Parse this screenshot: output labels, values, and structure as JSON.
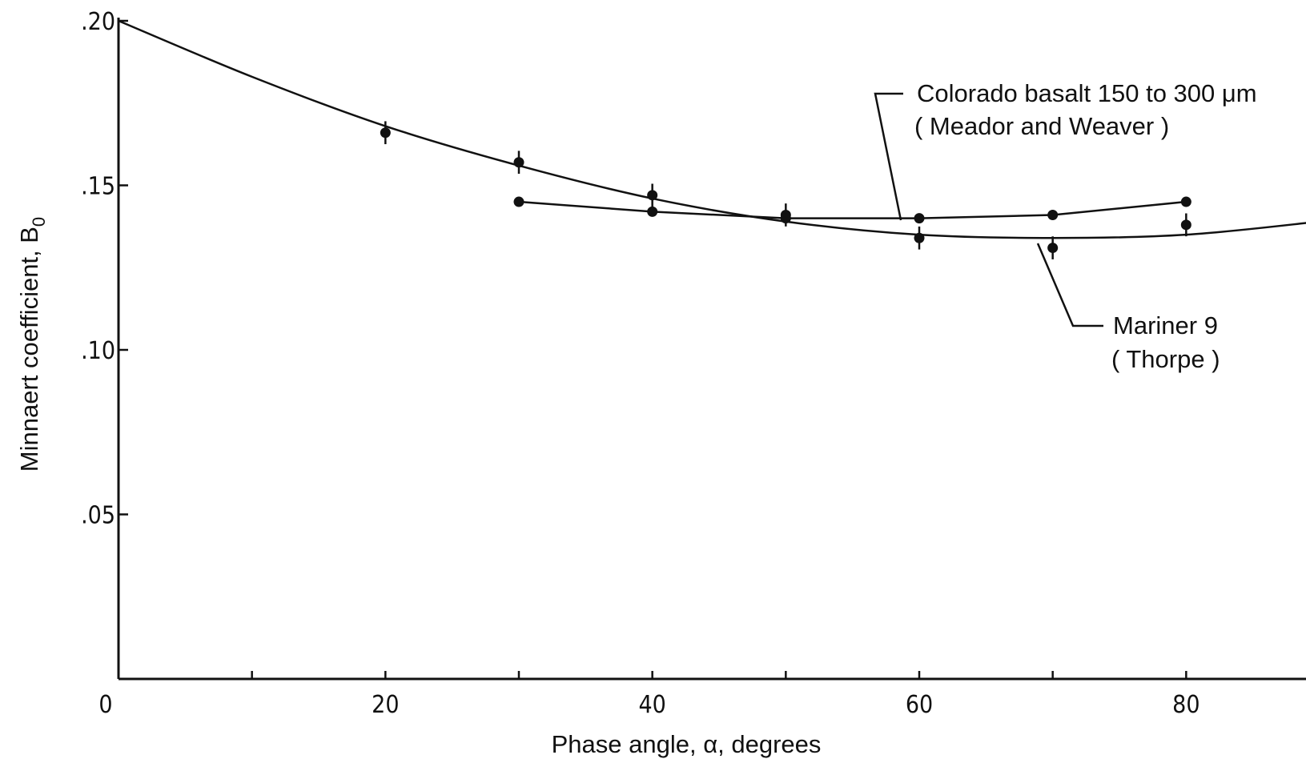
{
  "chart_data": {
    "type": "line",
    "xlabel": "Phase angle, α, degrees",
    "ylabel": "Minnaert coefficient, B",
    "ylabel_subscript": "0",
    "xlim": [
      0,
      90
    ],
    "ylim": [
      0,
      0.2
    ],
    "x_ticks": [
      {
        "value": 0,
        "label": "0"
      },
      {
        "value": 20,
        "label": "20"
      },
      {
        "value": 40,
        "label": "40"
      },
      {
        "value": 60,
        "label": "60"
      },
      {
        "value": 80,
        "label": "80"
      }
    ],
    "x_minor_ticks": [
      10,
      30,
      50,
      70,
      90
    ],
    "y_ticks": [
      {
        "value": 0.05,
        "label": ".05"
      },
      {
        "value": 0.1,
        "label": ".10"
      },
      {
        "value": 0.15,
        "label": ".15"
      },
      {
        "value": 0.2,
        "label": ".20"
      }
    ],
    "grid": false,
    "legend": "none",
    "series": [
      {
        "key": "mariner",
        "label_lines": [
          "Mariner 9",
          "( Thorpe )"
        ],
        "points": [
          {
            "x": 20,
            "y": 0.166,
            "err": 0.003
          },
          {
            "x": 30,
            "y": 0.157,
            "err": 0.003
          },
          {
            "x": 40,
            "y": 0.147,
            "err": 0.003
          },
          {
            "x": 50,
            "y": 0.141,
            "err": 0.003
          },
          {
            "x": 60,
            "y": 0.134,
            "err": 0.003
          },
          {
            "x": 70,
            "y": 0.131,
            "err": 0.003
          },
          {
            "x": 80,
            "y": 0.138,
            "err": 0.003
          }
        ],
        "fit_curve": [
          {
            "x": 0,
            "y": 0.2
          },
          {
            "x": 10,
            "y": 0.183
          },
          {
            "x": 20,
            "y": 0.168
          },
          {
            "x": 30,
            "y": 0.156
          },
          {
            "x": 40,
            "y": 0.146
          },
          {
            "x": 50,
            "y": 0.139
          },
          {
            "x": 60,
            "y": 0.135
          },
          {
            "x": 70,
            "y": 0.134
          },
          {
            "x": 80,
            "y": 0.135
          },
          {
            "x": 90,
            "y": 0.139
          }
        ]
      },
      {
        "key": "basalt",
        "label_lines": [
          "Colorado basalt  150 to 300 μm",
          "( Meador and Weaver )"
        ],
        "points": [
          {
            "x": 30,
            "y": 0.145
          },
          {
            "x": 40,
            "y": 0.142
          },
          {
            "x": 50,
            "y": 0.14
          },
          {
            "x": 60,
            "y": 0.14
          },
          {
            "x": 70,
            "y": 0.141
          },
          {
            "x": 80,
            "y": 0.145
          }
        ]
      }
    ]
  }
}
